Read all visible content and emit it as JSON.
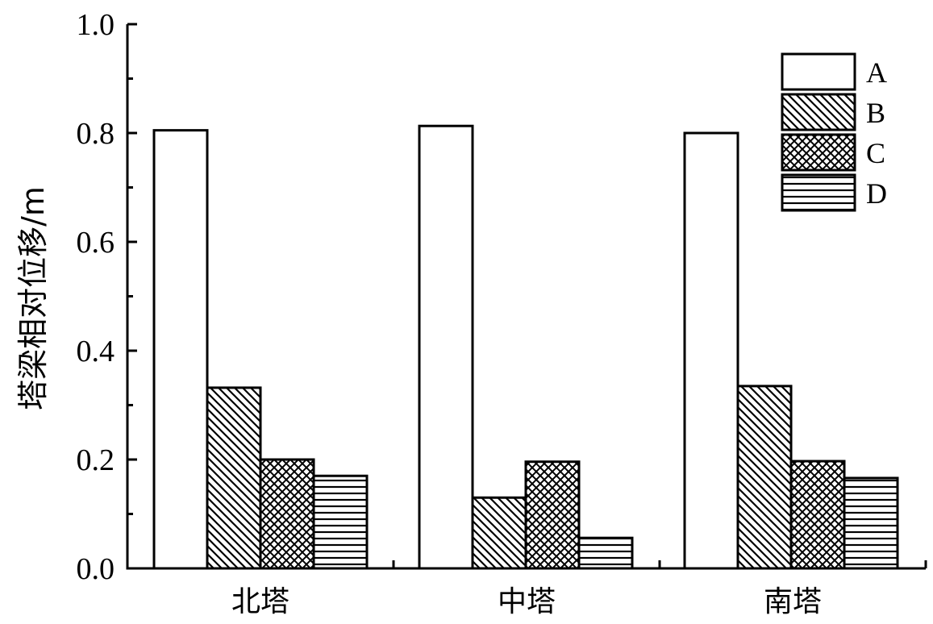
{
  "chart_data": {
    "type": "bar",
    "categories": [
      "北塔",
      "中塔",
      "南塔"
    ],
    "series": [
      {
        "name": "A",
        "values": [
          0.805,
          0.813,
          0.8
        ],
        "pattern": "none"
      },
      {
        "name": "B",
        "values": [
          0.332,
          0.13,
          0.335
        ],
        "pattern": "diagonal"
      },
      {
        "name": "C",
        "values": [
          0.2,
          0.196,
          0.197
        ],
        "pattern": "crosshatch"
      },
      {
        "name": "D",
        "values": [
          0.17,
          0.056,
          0.166
        ],
        "pattern": "horizontal"
      }
    ],
    "title": "",
    "xlabel": "",
    "ylabel": "塔梁相对位移/m",
    "ylim": [
      0.0,
      1.0
    ],
    "yticks": [
      "0.0",
      "0.2",
      "0.4",
      "0.6",
      "0.8",
      "1.0"
    ],
    "grid": false,
    "legend_position": "top-right",
    "colors": {
      "bar_fill": "#ffffff",
      "stroke": "#000000"
    }
  }
}
